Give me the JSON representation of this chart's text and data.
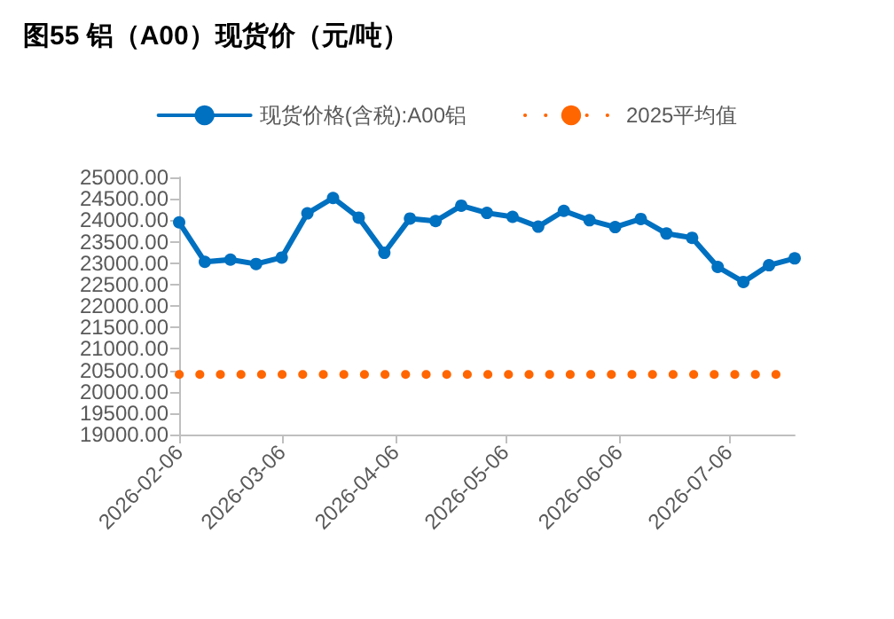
{
  "chart_data": {
    "type": "line",
    "title": "图55 铝（A00）现货价（元/吨）",
    "x": [
      "2026-02-06",
      "2026-02-13",
      "2026-02-20",
      "2026-02-27",
      "2026-03-06",
      "2026-03-13",
      "2026-03-20",
      "2026-03-27",
      "2026-04-03",
      "2026-04-10",
      "2026-04-17",
      "2026-04-24",
      "2026-05-01",
      "2026-05-08",
      "2026-05-15",
      "2026-05-22",
      "2026-05-29",
      "2026-06-05",
      "2026-06-12",
      "2026-06-19",
      "2026-06-26",
      "2026-07-03",
      "2026-07-10",
      "2026-07-17",
      "2026-07-24"
    ],
    "series": [
      {
        "name": "现货价格(含税):A00铝",
        "color": "#0070c0",
        "marker": "circle",
        "line_style": "solid",
        "values": [
          23950,
          23030,
          23080,
          22980,
          23130,
          24160,
          24520,
          24060,
          23240,
          24040,
          23980,
          24340,
          24170,
          24080,
          23850,
          24220,
          24000,
          23840,
          24030,
          23690,
          23590,
          22910,
          22560,
          22950,
          23110
        ]
      },
      {
        "name": "2025平均值",
        "color": "#ff6600",
        "marker": "none",
        "line_style": "dotted",
        "values": [
          20400,
          20400,
          20400,
          20400,
          20400,
          20400,
          20400,
          20400,
          20400,
          20400,
          20400,
          20400,
          20400,
          20400,
          20400,
          20400,
          20400,
          20400,
          20400,
          20400,
          20400,
          20400,
          20400,
          20400,
          20400
        ]
      }
    ],
    "xlim": [
      "2026-02-06",
      "2026-07-24"
    ],
    "xticks": [
      "2026-02-06",
      "2026-03-06",
      "2026-04-06",
      "2026-05-06",
      "2026-06-06",
      "2026-07-06"
    ],
    "ylim": [
      19000,
      25000
    ],
    "yticks": [
      {
        "value": 19000,
        "label": "19000.00"
      },
      {
        "value": 19500,
        "label": "19500.00"
      },
      {
        "value": 20000,
        "label": "20000.00"
      },
      {
        "value": 20500,
        "label": "20500.00"
      },
      {
        "value": 21000,
        "label": "21000.00"
      },
      {
        "value": 21500,
        "label": "21500.00"
      },
      {
        "value": 22000,
        "label": "22000.00"
      },
      {
        "value": 22500,
        "label": "22500.00"
      },
      {
        "value": 23000,
        "label": "23000.00"
      },
      {
        "value": 23500,
        "label": "23500.00"
      },
      {
        "value": 24000,
        "label": "24000.00"
      },
      {
        "value": 24500,
        "label": "24500.00"
      },
      {
        "value": 25000,
        "label": "25000.00"
      }
    ],
    "grid": false,
    "legend": "top"
  }
}
